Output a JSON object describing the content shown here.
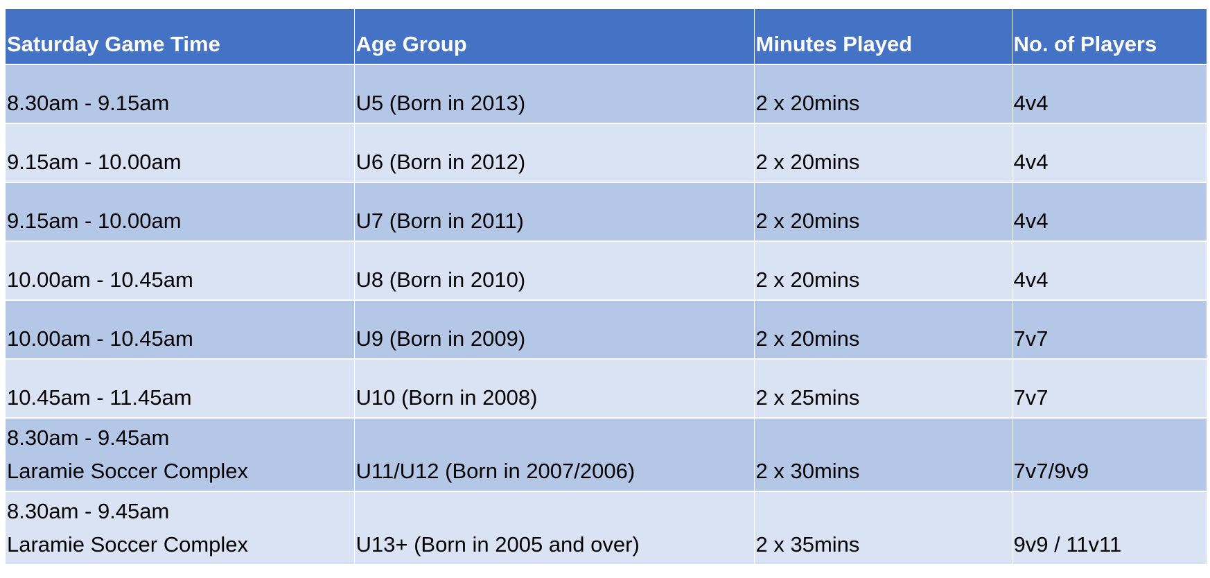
{
  "table": {
    "headers": [
      "Saturday Game Time",
      "Age Group",
      "Minutes Played",
      "No. of Players"
    ],
    "rows": [
      {
        "time": "8.30am - 9.15am",
        "time_location": "",
        "age": "U5 (Born in 2013)",
        "minutes": "2 x 20mins",
        "players": "4v4"
      },
      {
        "time": "9.15am - 10.00am",
        "time_location": "",
        "age": "U6 (Born in 2012)",
        "minutes": "2 x 20mins",
        "players": "4v4"
      },
      {
        "time": "9.15am - 10.00am",
        "time_location": "",
        "age": "U7 (Born in 2011)",
        "minutes": "2 x 20mins",
        "players": "4v4"
      },
      {
        "time": "10.00am - 10.45am",
        "time_location": "",
        "age": "U8 (Born in 2010)",
        "minutes": "2 x 20mins",
        "players": "4v4"
      },
      {
        "time": "10.00am - 10.45am",
        "time_location": "",
        "age": "U9 (Born in 2009)",
        "minutes": "2 x 20mins",
        "players": "7v7"
      },
      {
        "time": "10.45am - 11.45am",
        "time_location": "",
        "age": "U10 (Born in 2008)",
        "minutes": "2 x 25mins",
        "players": "7v7"
      },
      {
        "time": "8.30am - 9.45am",
        "time_location": "Laramie Soccer Complex",
        "age": "U11/U12 (Born in 2007/2006)",
        "minutes": "2 x 30mins",
        "players": "7v7/9v9"
      },
      {
        "time": "8.30am - 9.45am",
        "time_location": "Laramie Soccer Complex",
        "age": "U13+ (Born in 2005 and over)",
        "minutes": "2 x 35mins",
        "players": "9v9 / 11v11"
      }
    ]
  },
  "colors": {
    "header_bg": "#4472c4",
    "row_dark": "#b4c7e7",
    "row_light": "#dae3f3"
  }
}
